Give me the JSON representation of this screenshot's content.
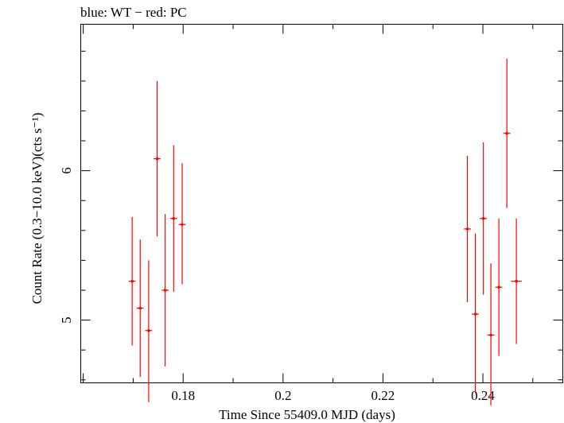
{
  "chart_data": {
    "type": "scatter",
    "title": "blue: WT − red: PC",
    "xlabel": "Time Since 55409.0 MJD (days)",
    "ylabel": "Count Rate (0.3−10.0 keV)(cts s⁻¹)",
    "xlim": [
      0.1595,
      0.256
    ],
    "ylim": [
      4.58,
      6.98
    ],
    "xticks": [
      0.18,
      0.2,
      0.22,
      0.24
    ],
    "xtick_labels": [
      "0.18",
      "0.2",
      "0.22",
      "0.24"
    ],
    "yticks": [
      5,
      6
    ],
    "ytick_labels": [
      "5",
      "6"
    ],
    "grid": false,
    "series": [
      {
        "color": "#ff0000",
        "points": [
          {
            "x": 0.1698,
            "y": 5.26,
            "xerr": 0.0007,
            "yerr_lo": 0.43,
            "yerr_hi": 0.43
          },
          {
            "x": 0.1714,
            "y": 5.08,
            "xerr": 0.0007,
            "yerr_lo": 0.46,
            "yerr_hi": 0.46
          },
          {
            "x": 0.1731,
            "y": 4.93,
            "xerr": 0.0007,
            "yerr_lo": 0.48,
            "yerr_hi": 0.47
          },
          {
            "x": 0.1748,
            "y": 6.08,
            "xerr": 0.0007,
            "yerr_lo": 0.52,
            "yerr_hi": 0.52
          },
          {
            "x": 0.1764,
            "y": 5.2,
            "xerr": 0.0007,
            "yerr_lo": 0.51,
            "yerr_hi": 0.51
          },
          {
            "x": 0.1781,
            "y": 5.68,
            "xerr": 0.0007,
            "yerr_lo": 0.49,
            "yerr_hi": 0.49
          },
          {
            "x": 0.1798,
            "y": 5.64,
            "xerr": 0.0007,
            "yerr_lo": 0.4,
            "yerr_hi": 0.41
          },
          {
            "x": 0.2369,
            "y": 5.61,
            "xerr": 0.0007,
            "yerr_lo": 0.49,
            "yerr_hi": 0.49
          },
          {
            "x": 0.2385,
            "y": 5.04,
            "xerr": 0.0007,
            "yerr_lo": 0.53,
            "yerr_hi": 0.54
          },
          {
            "x": 0.2401,
            "y": 5.68,
            "xerr": 0.0007,
            "yerr_lo": 0.51,
            "yerr_hi": 0.51
          },
          {
            "x": 0.2416,
            "y": 4.9,
            "xerr": 0.0007,
            "yerr_lo": 0.47,
            "yerr_hi": 0.48
          },
          {
            "x": 0.2432,
            "y": 5.22,
            "xerr": 0.0007,
            "yerr_lo": 0.46,
            "yerr_hi": 0.46
          },
          {
            "x": 0.2448,
            "y": 6.25,
            "xerr": 0.0007,
            "yerr_lo": 0.5,
            "yerr_hi": 0.5
          },
          {
            "x": 0.2467,
            "y": 5.26,
            "xerr": 0.0011,
            "yerr_lo": 0.42,
            "yerr_hi": 0.42
          }
        ]
      }
    ]
  }
}
